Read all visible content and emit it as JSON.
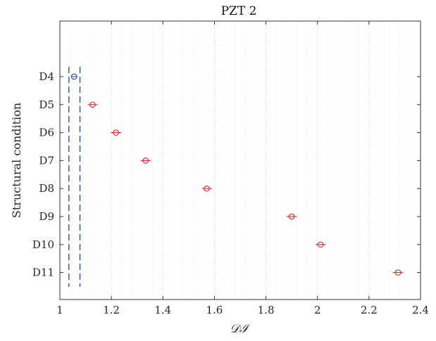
{
  "chart_data": {
    "type": "scatter",
    "title": "PZT 2",
    "xlabel": "𝒟ℐ",
    "ylabel": "Structural condition",
    "xlim": [
      1,
      2.4
    ],
    "xticks": [
      1,
      1.2,
      1.4,
      1.6,
      1.8,
      2,
      2.2,
      2.4
    ],
    "xtick_labels": [
      "1",
      "1.2",
      "1.4",
      "1.6",
      "1.8",
      "2",
      "2.2",
      "2.4"
    ],
    "categories": [
      "D4",
      "D5",
      "D6",
      "D7",
      "D8",
      "D9",
      "D10",
      "D11"
    ],
    "grid": true,
    "points": [
      {
        "category": "D4",
        "value": 1.055,
        "err_low": 1.045,
        "err_high": 1.068,
        "color": "#2f4ea8"
      },
      {
        "category": "D5",
        "value": 1.127,
        "err_low": 1.108,
        "err_high": 1.147,
        "color": "#d62728"
      },
      {
        "category": "D6",
        "value": 1.218,
        "err_low": 1.198,
        "err_high": 1.238,
        "color": "#d62728"
      },
      {
        "category": "D7",
        "value": 1.333,
        "err_low": 1.313,
        "err_high": 1.353,
        "color": "#d62728"
      },
      {
        "category": "D8",
        "value": 1.57,
        "err_low": 1.552,
        "err_high": 1.59,
        "color": "#d62728"
      },
      {
        "category": "D9",
        "value": 1.9,
        "err_low": 1.88,
        "err_high": 1.92,
        "color": "#d62728"
      },
      {
        "category": "D10",
        "value": 2.012,
        "err_low": 1.992,
        "err_high": 2.032,
        "color": "#d62728"
      },
      {
        "category": "D11",
        "value": 2.313,
        "err_low": 2.293,
        "err_high": 2.333,
        "color": "#d62728"
      }
    ],
    "threshold_lines": [
      {
        "x": 1.035,
        "style": "dashed",
        "color": "#2f4ea8"
      },
      {
        "x": 1.078,
        "style": "dashed",
        "color": "#2f4ea8"
      }
    ]
  }
}
